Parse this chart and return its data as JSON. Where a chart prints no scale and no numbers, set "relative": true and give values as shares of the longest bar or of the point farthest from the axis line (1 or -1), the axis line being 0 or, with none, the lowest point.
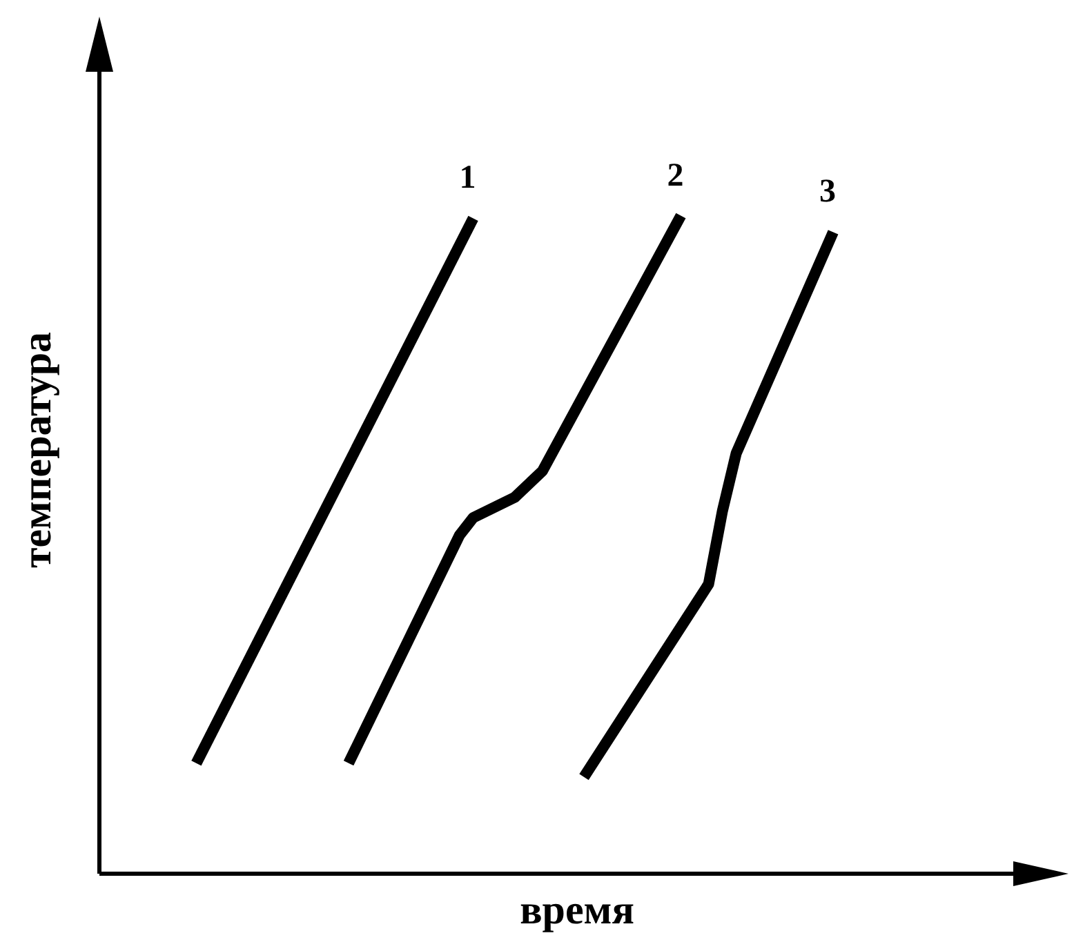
{
  "chart_data": {
    "type": "line",
    "relative": true,
    "xlabel": "время",
    "ylabel": "температура",
    "legend": false,
    "grid": false,
    "marker": "none",
    "line_style": "solid",
    "categories": [
      null,
      null,
      null,
      null,
      null,
      null,
      null,
      null,
      null,
      null,
      null,
      null,
      null,
      null,
      null,
      null,
      null,
      null,
      null,
      null,
      null,
      null,
      null,
      null,
      null,
      null,
      null,
      null,
      null,
      null,
      null,
      null,
      null,
      null,
      null,
      null,
      null,
      null,
      null,
      null,
      null,
      null,
      null,
      null,
      null,
      null,
      null,
      null,
      null,
      null,
      null,
      null,
      null,
      null,
      null,
      null,
      null,
      null,
      null,
      null,
      null,
      null,
      null,
      null,
      null,
      null,
      null,
      null,
      null,
      null
    ],
    "series": [
      {
        "name": "1",
        "color": "#000000",
        "values": [
          null,
          null,
          null,
          null,
          null,
          null,
          null,
          0.168,
          null,
          null,
          null,
          null,
          null,
          null,
          null,
          null,
          null,
          null,
          null,
          null,
          null,
          null,
          null,
          null,
          null,
          null,
          null,
          0.996,
          null,
          null,
          null,
          null,
          null,
          null,
          null,
          null,
          null,
          null,
          null,
          null,
          null,
          null,
          null,
          null,
          null,
          null,
          null,
          null,
          null,
          null,
          null,
          null,
          null,
          null,
          null,
          null,
          null,
          null,
          null,
          null,
          null,
          null,
          null,
          null,
          null,
          null,
          null,
          null,
          null,
          null
        ]
      },
      {
        "name": "2",
        "color": "#000000",
        "values": [
          null,
          null,
          null,
          null,
          null,
          null,
          null,
          null,
          null,
          null,
          null,
          null,
          null,
          null,
          null,
          null,
          null,
          null,
          0.168,
          null,
          null,
          null,
          null,
          null,
          null,
          null,
          0.514,
          0.541,
          null,
          null,
          0.572,
          null,
          0.612,
          null,
          null,
          null,
          null,
          null,
          null,
          null,
          null,
          null,
          1,
          null,
          null,
          null,
          null,
          null,
          null,
          null,
          null,
          null,
          null,
          null,
          null,
          null,
          null,
          null,
          null,
          null,
          null,
          null,
          null,
          null,
          null,
          null,
          null,
          null,
          null,
          null
        ]
      },
      {
        "name": "3",
        "color": "#000000",
        "values": [
          null,
          null,
          null,
          null,
          null,
          null,
          null,
          null,
          null,
          null,
          null,
          null,
          null,
          null,
          null,
          null,
          null,
          null,
          null,
          null,
          null,
          null,
          null,
          null,
          null,
          null,
          null,
          null,
          null,
          null,
          null,
          null,
          null,
          null,
          null,
          0.147,
          null,
          null,
          null,
          null,
          null,
          null,
          null,
          null,
          0.44,
          0.551,
          0.639,
          null,
          null,
          null,
          null,
          null,
          null,
          0.975,
          null,
          null,
          null,
          null,
          null,
          null,
          null,
          null,
          null,
          null,
          null,
          null,
          null,
          null,
          null,
          null
        ]
      }
    ]
  }
}
